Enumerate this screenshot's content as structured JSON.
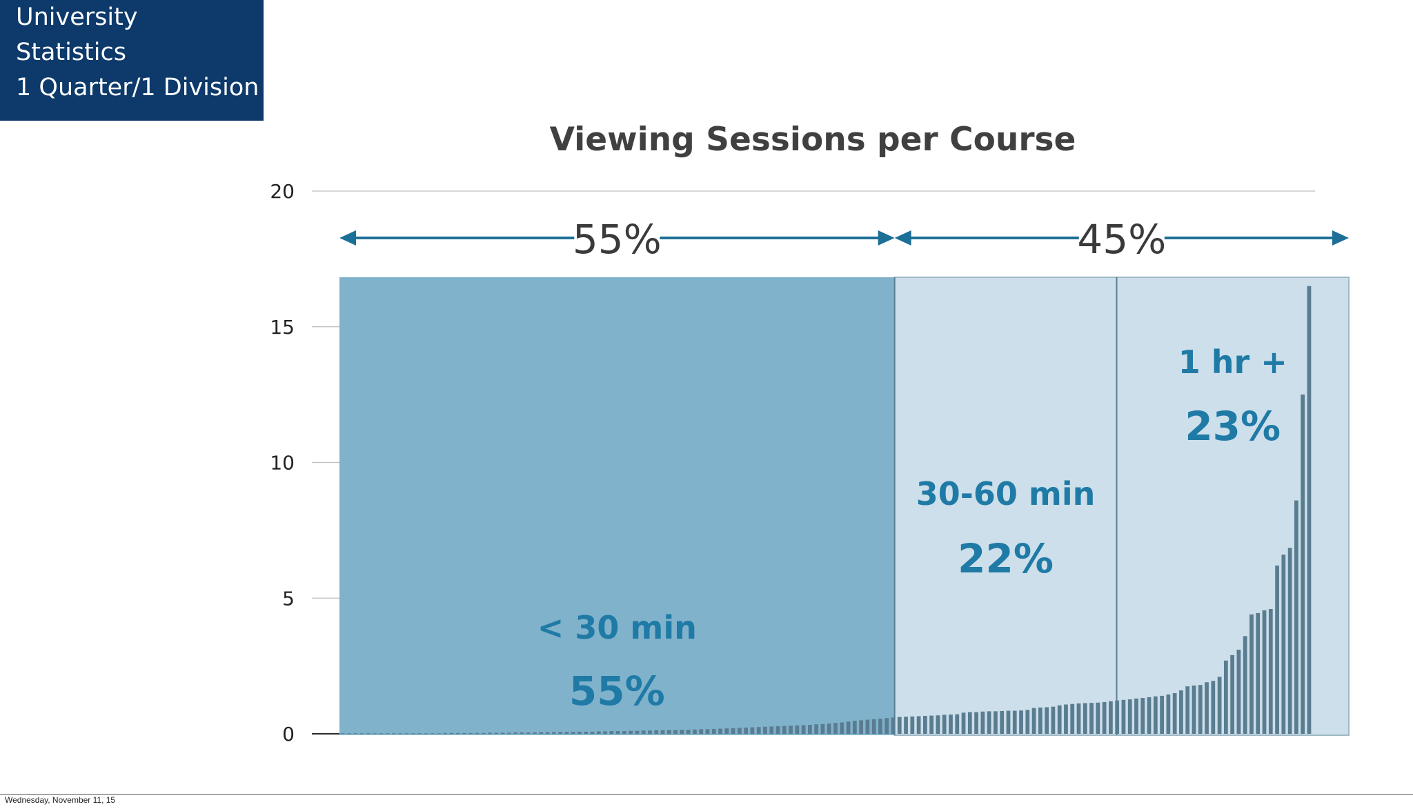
{
  "header": {
    "line1": "University",
    "line2": "Statistics",
    "line3": "1 Quarter/1 Division"
  },
  "footer": {
    "date": "Wednesday, November 11, 15"
  },
  "colors": {
    "header_bg": "#0d3a6b",
    "region_dark": "#80b2cc",
    "region_light": "#ccdfea",
    "label_blue": "#1f7aa6",
    "arrow_blue": "#1c6f96",
    "bar": "#5a7c90"
  },
  "chart_data": {
    "type": "bar",
    "title": "Viewing Sessions per Course",
    "xlabel": "",
    "ylabel": "",
    "ylim": [
      0,
      20
    ],
    "yticks": [
      "0",
      "5",
      "10",
      "15",
      "20"
    ],
    "grid": true,
    "values": [
      0.02,
      0.02,
      0.02,
      0.02,
      0.02,
      0.02,
      0.02,
      0.02,
      0.02,
      0.02,
      0.02,
      0.02,
      0.02,
      0.02,
      0.02,
      0.02,
      0.03,
      0.03,
      0.03,
      0.03,
      0.03,
      0.03,
      0.03,
      0.04,
      0.04,
      0.04,
      0.04,
      0.05,
      0.05,
      0.05,
      0.05,
      0.06,
      0.06,
      0.06,
      0.07,
      0.07,
      0.07,
      0.08,
      0.08,
      0.08,
      0.09,
      0.09,
      0.1,
      0.1,
      0.1,
      0.11,
      0.11,
      0.12,
      0.12,
      0.13,
      0.13,
      0.14,
      0.14,
      0.15,
      0.15,
      0.16,
      0.17,
      0.17,
      0.18,
      0.19,
      0.2,
      0.21,
      0.22,
      0.23,
      0.24,
      0.25,
      0.26,
      0.27,
      0.28,
      0.29,
      0.3,
      0.31,
      0.32,
      0.33,
      0.35,
      0.36,
      0.38,
      0.4,
      0.42,
      0.45,
      0.48,
      0.5,
      0.52,
      0.54,
      0.56,
      0.58,
      0.6,
      0.62,
      0.63,
      0.64,
      0.65,
      0.66,
      0.67,
      0.68,
      0.7,
      0.71,
      0.72,
      0.78,
      0.8,
      0.8,
      0.82,
      0.83,
      0.83,
      0.84,
      0.85,
      0.85,
      0.86,
      0.88,
      0.95,
      0.97,
      0.98,
      1.0,
      1.05,
      1.08,
      1.1,
      1.12,
      1.13,
      1.14,
      1.15,
      1.17,
      1.2,
      1.23,
      1.25,
      1.27,
      1.3,
      1.32,
      1.35,
      1.38,
      1.4,
      1.45,
      1.5,
      1.6,
      1.75,
      1.78,
      1.8,
      1.9,
      1.95,
      2.1,
      2.7,
      2.9,
      3.1,
      3.6,
      4.4,
      4.45,
      4.55,
      4.6,
      6.2,
      6.6,
      6.85,
      8.6,
      12.5,
      16.5
    ],
    "regions": [
      {
        "label": "< 30 min",
        "percent": "55%",
        "share": 0.55
      },
      {
        "label": "30-60 min",
        "percent": "22%",
        "share": 0.22
      },
      {
        "label": "1 hr +",
        "percent": "23%",
        "share": 0.23
      }
    ],
    "groups": [
      {
        "percent": "55%",
        "share": 0.55
      },
      {
        "percent": "45%",
        "share": 0.45
      }
    ]
  }
}
